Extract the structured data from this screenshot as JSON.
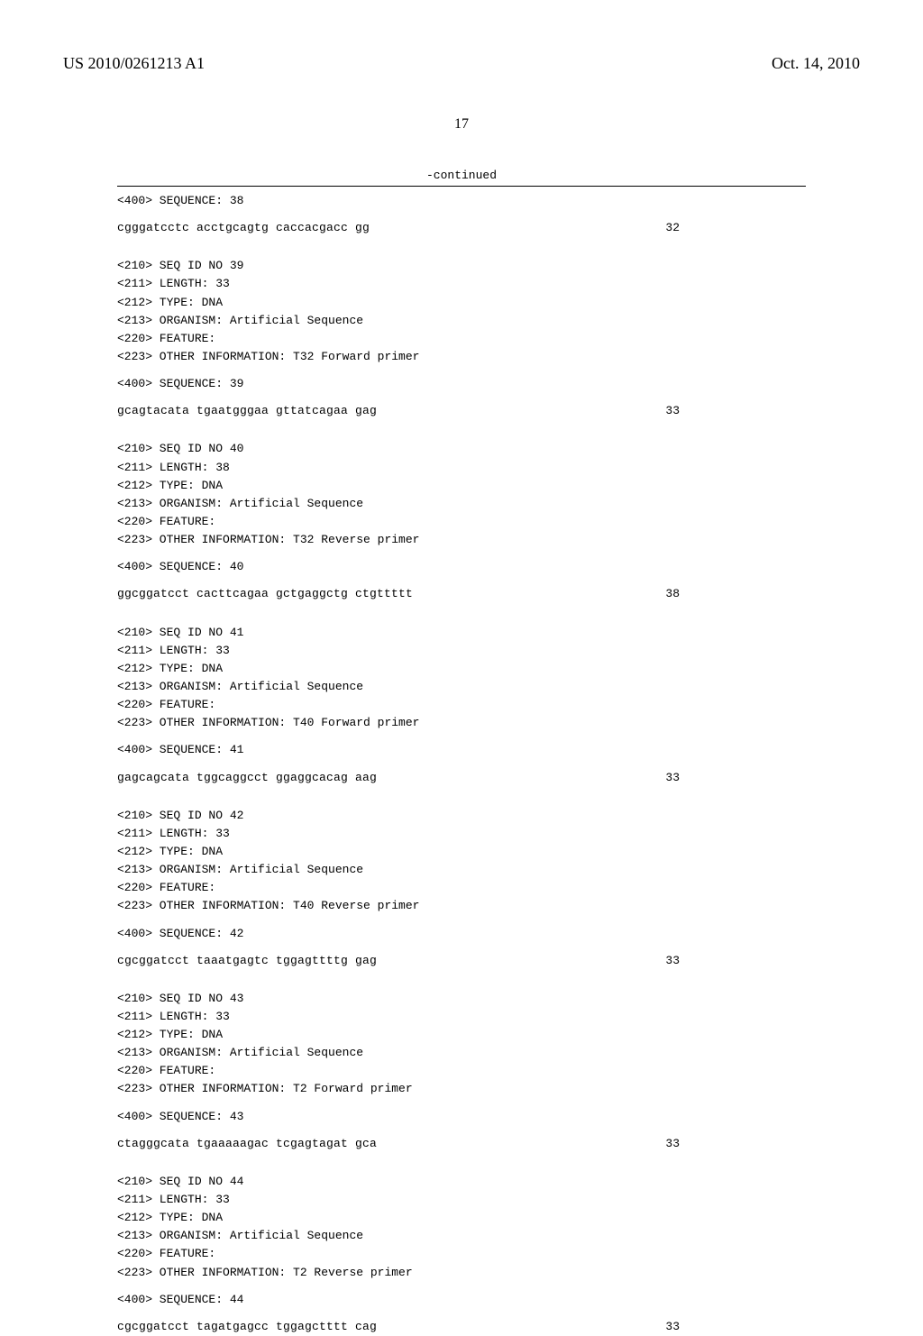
{
  "header": {
    "pub_number": "US 2010/0261213 A1",
    "pub_date": "Oct. 14, 2010"
  },
  "page_number": "17",
  "continued_label": "-continued",
  "entries": [
    {
      "meta_line_1": "<400> SEQUENCE: 38",
      "sequence": "cgggatcctc acctgcagtg caccacgacc gg",
      "length": "32"
    },
    {
      "meta": "<210> SEQ ID NO 39\n<211> LENGTH: 33\n<212> TYPE: DNA\n<213> ORGANISM: Artificial Sequence\n<220> FEATURE:\n<223> OTHER INFORMATION: T32 Forward primer",
      "seq_header": "<400> SEQUENCE: 39",
      "sequence": "gcagtacata tgaatgggaa gttatcagaa gag",
      "length": "33"
    },
    {
      "meta": "<210> SEQ ID NO 40\n<211> LENGTH: 38\n<212> TYPE: DNA\n<213> ORGANISM: Artificial Sequence\n<220> FEATURE:\n<223> OTHER INFORMATION: T32 Reverse primer",
      "seq_header": "<400> SEQUENCE: 40",
      "sequence": "ggcggatcct cacttcagaa gctgaggctg ctgttttt",
      "length": "38"
    },
    {
      "meta": "<210> SEQ ID NO 41\n<211> LENGTH: 33\n<212> TYPE: DNA\n<213> ORGANISM: Artificial Sequence\n<220> FEATURE:\n<223> OTHER INFORMATION: T40 Forward primer",
      "seq_header": "<400> SEQUENCE: 41",
      "sequence": "gagcagcata tggcaggcct ggaggcacag aag",
      "length": "33"
    },
    {
      "meta": "<210> SEQ ID NO 42\n<211> LENGTH: 33\n<212> TYPE: DNA\n<213> ORGANISM: Artificial Sequence\n<220> FEATURE:\n<223> OTHER INFORMATION: T40 Reverse primer",
      "seq_header": "<400> SEQUENCE: 42",
      "sequence": "cgcggatcct taaatgagtc tggagttttg gag",
      "length": "33"
    },
    {
      "meta": "<210> SEQ ID NO 43\n<211> LENGTH: 33\n<212> TYPE: DNA\n<213> ORGANISM: Artificial Sequence\n<220> FEATURE:\n<223> OTHER INFORMATION: T2 Forward primer",
      "seq_header": "<400> SEQUENCE: 43",
      "sequence": "ctagggcata tgaaaaagac tcgagtagat gca",
      "length": "33"
    },
    {
      "meta": "<210> SEQ ID NO 44\n<211> LENGTH: 33\n<212> TYPE: DNA\n<213> ORGANISM: Artificial Sequence\n<220> FEATURE:\n<223> OTHER INFORMATION: T2 Reverse primer",
      "seq_header": "<400> SEQUENCE: 44",
      "sequence": "cgcggatcct tagatgagcc tggagctttt cag",
      "length": "33"
    }
  ]
}
